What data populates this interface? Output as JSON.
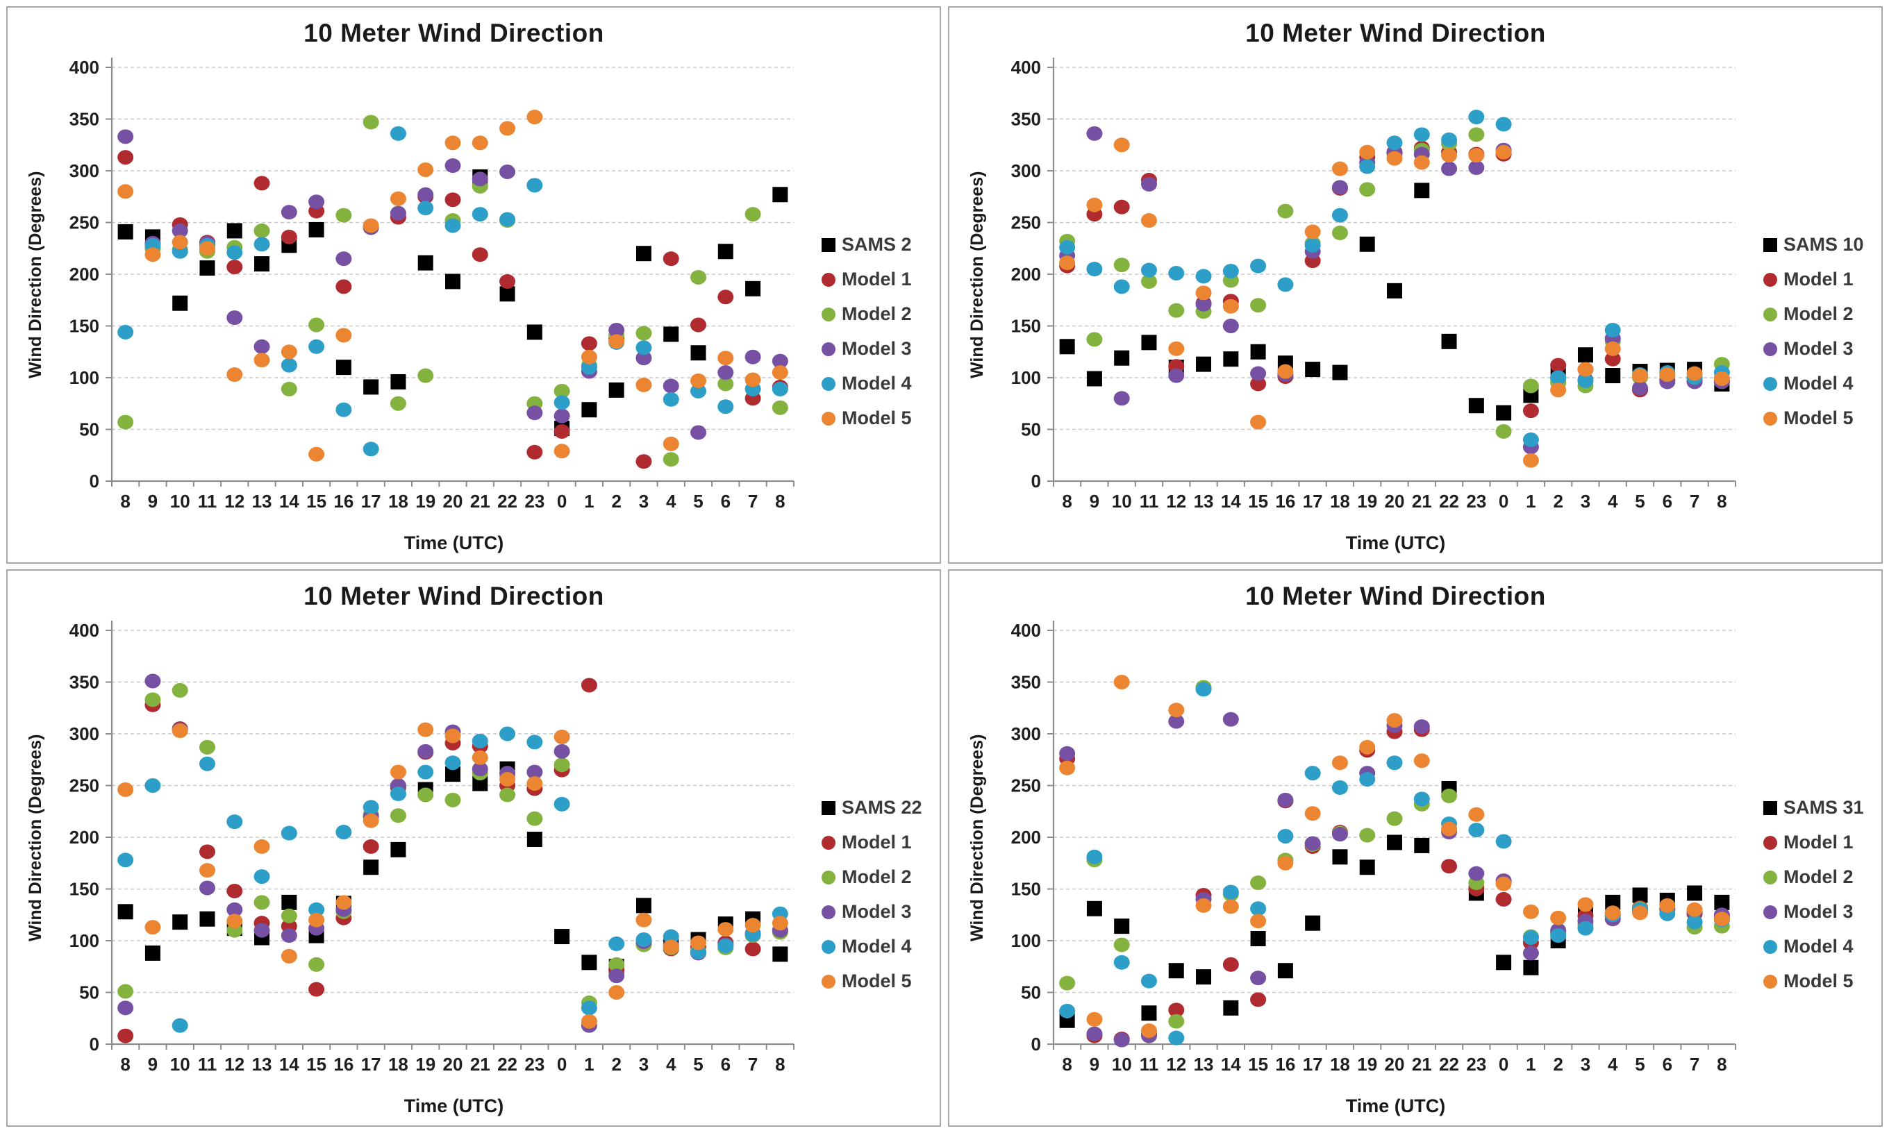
{
  "page": {
    "background": "#ffffff",
    "panel_border": "#a8a8a8"
  },
  "chrome": {
    "grid_color": "#c9c9c9",
    "axis_color": "#8c8c8c",
    "tick_text_color": "#1f1f1f",
    "title_color": "#1a1a1a"
  },
  "chart_data": [
    {
      "type": "scatter",
      "title": "10 Meter Wind Direction",
      "xlabel": "Time (UTC)",
      "ylabel": "Wind Direction (Degrees)",
      "ylim": [
        0,
        400
      ],
      "ystep": 50,
      "grid": true,
      "legend_position": "right",
      "categories": [
        "8",
        "9",
        "10",
        "11",
        "12",
        "13",
        "14",
        "15",
        "16",
        "17",
        "18",
        "19",
        "20",
        "21",
        "22",
        "23",
        "0",
        "1",
        "2",
        "3",
        "4",
        "5",
        "6",
        "7",
        "8"
      ],
      "series": [
        {
          "name": "SAMS 2",
          "marker": "square",
          "color": "#000000",
          "values": [
            241,
            236,
            172,
            206,
            242,
            210,
            228,
            243,
            110,
            91,
            96,
            211,
            193,
            294,
            181,
            144,
            51,
            69,
            88,
            220,
            142,
            124,
            222,
            186,
            277
          ]
        },
        {
          "name": "Model 1",
          "marker": "circle",
          "color": "#b02b30",
          "values": [
            313,
            225,
            248,
            231,
            207,
            288,
            236,
            261,
            188,
            246,
            255,
            275,
            272,
            219,
            193,
            28,
            48,
            133,
            138,
            19,
            215,
            151,
            178,
            80,
            91
          ]
        },
        {
          "name": "Model 2",
          "marker": "circle",
          "color": "#84b23e",
          "values": [
            57,
            225,
            224,
            222,
            226,
            242,
            89,
            151,
            257,
            347,
            75,
            102,
            252,
            285,
            252,
            75,
            87,
            112,
            141,
            143,
            21,
            197,
            94,
            258,
            71
          ]
        },
        {
          "name": "Model 3",
          "marker": "circle",
          "color": "#7650a2",
          "values": [
            333,
            230,
            242,
            230,
            158,
            130,
            260,
            270,
            215,
            245,
            259,
            277,
            305,
            292,
            299,
            66,
            63,
            106,
            146,
            119,
            92,
            47,
            105,
            120,
            116
          ]
        },
        {
          "name": "Model 4",
          "marker": "circle",
          "color": "#2c9ec7",
          "values": [
            144,
            228,
            222,
            228,
            221,
            229,
            112,
            130,
            69,
            31,
            336,
            264,
            247,
            258,
            253,
            286,
            76,
            110,
            134,
            129,
            79,
            87,
            72,
            89,
            89
          ]
        },
        {
          "name": "Model 5",
          "marker": "circle",
          "color": "#eb8532",
          "values": [
            280,
            219,
            231,
            225,
            103,
            117,
            125,
            26,
            141,
            247,
            273,
            301,
            327,
            327,
            341,
            352,
            29,
            120,
            135,
            93,
            36,
            97,
            119,
            98,
            105
          ]
        }
      ]
    },
    {
      "type": "scatter",
      "title": "10 Meter Wind Direction",
      "xlabel": "Time (UTC)",
      "ylabel": "Wind Direction (Degrees)",
      "ylim": [
        0,
        400
      ],
      "ystep": 50,
      "grid": true,
      "legend_position": "right",
      "categories": [
        "8",
        "9",
        "10",
        "11",
        "12",
        "13",
        "14",
        "15",
        "16",
        "17",
        "18",
        "19",
        "20",
        "21",
        "22",
        "23",
        "0",
        "1",
        "2",
        "3",
        "4",
        "5",
        "6",
        "7",
        "8"
      ],
      "series": [
        {
          "name": "SAMS 10",
          "marker": "square",
          "color": "#000000",
          "values": [
            130,
            99,
            119,
            134,
            110,
            113,
            118,
            125,
            114,
            108,
            105,
            229,
            184,
            281,
            135,
            73,
            66,
            83,
            104,
            122,
            102,
            106,
            107,
            108,
            94
          ]
        },
        {
          "name": "Model 1",
          "marker": "circle",
          "color": "#b02b30",
          "values": [
            208,
            258,
            265,
            291,
            111,
            172,
            174,
            94,
            101,
            213,
            283,
            313,
            318,
            322,
            318,
            316,
            316,
            68,
            112,
            108,
            118,
            88,
            98,
            97,
            97
          ]
        },
        {
          "name": "Model 2",
          "marker": "circle",
          "color": "#84b23e",
          "values": [
            232,
            137,
            209,
            193,
            165,
            164,
            194,
            170,
            261,
            230,
            240,
            282,
            316,
            320,
            326,
            335,
            48,
            92,
            95,
            92,
            135,
            100,
            101,
            100,
            113
          ]
        },
        {
          "name": "Model 3",
          "marker": "circle",
          "color": "#7650a2",
          "values": [
            218,
            336,
            80,
            287,
            102,
            171,
            150,
            104,
            103,
            222,
            284,
            308,
            317,
            316,
            302,
            303,
            320,
            33,
            100,
            98,
            138,
            90,
            96,
            96,
            96
          ]
        },
        {
          "name": "Model 4",
          "marker": "circle",
          "color": "#2c9ec7",
          "values": [
            226,
            205,
            188,
            204,
            201,
            198,
            203,
            208,
            190,
            228,
            257,
            304,
            327,
            335,
            330,
            352,
            345,
            40,
            100,
            97,
            146,
            103,
            105,
            100,
            105
          ]
        },
        {
          "name": "Model 5",
          "marker": "circle",
          "color": "#eb8532",
          "values": [
            211,
            267,
            325,
            252,
            128,
            182,
            169,
            57,
            106,
            241,
            302,
            318,
            312,
            308,
            315,
            315,
            318,
            20,
            88,
            108,
            128,
            102,
            103,
            104,
            99
          ]
        }
      ]
    },
    {
      "type": "scatter",
      "title": "10 Meter Wind Direction",
      "xlabel": "Time (UTC)",
      "ylabel": "Wind Direction (Degrees)",
      "ylim": [
        0,
        400
      ],
      "ystep": 50,
      "grid": true,
      "legend_position": "right",
      "categories": [
        "8",
        "9",
        "10",
        "11",
        "12",
        "13",
        "14",
        "15",
        "16",
        "17",
        "18",
        "19",
        "20",
        "21",
        "22",
        "23",
        "0",
        "1",
        "2",
        "3",
        "4",
        "5",
        "6",
        "7",
        "8"
      ],
      "series": [
        {
          "name": "SAMS 22",
          "marker": "square",
          "color": "#000000",
          "values": [
            128,
            88,
            118,
            121,
            112,
            103,
            137,
            105,
            136,
            171,
            188,
            246,
            261,
            252,
            266,
            198,
            104,
            79,
            75,
            134,
            97,
            101,
            116,
            121,
            87
          ]
        },
        {
          "name": "Model 1",
          "marker": "circle",
          "color": "#b02b30",
          "values": [
            8,
            328,
            305,
            186,
            148,
            117,
            114,
            53,
            122,
            191,
            248,
            282,
            291,
            288,
            250,
            247,
            265,
            347,
            72,
            97,
            92,
            94,
            98,
            92,
            110
          ]
        },
        {
          "name": "Model 2",
          "marker": "circle",
          "color": "#84b23e",
          "values": [
            51,
            333,
            342,
            287,
            110,
            137,
            124,
            77,
            128,
            222,
            221,
            241,
            236,
            262,
            241,
            218,
            270,
            40,
            77,
            96,
            93,
            90,
            93,
            105,
            108
          ]
        },
        {
          "name": "Model 3",
          "marker": "circle",
          "color": "#7650a2",
          "values": [
            35,
            351,
            304,
            151,
            130,
            110,
            105,
            112,
            130,
            220,
            250,
            283,
            302,
            266,
            262,
            263,
            283,
            18,
            66,
            99,
            95,
            88,
            96,
            107,
            110
          ]
        },
        {
          "name": "Model 4",
          "marker": "circle",
          "color": "#2c9ec7",
          "values": [
            178,
            250,
            18,
            271,
            215,
            162,
            204,
            130,
            205,
            229,
            242,
            263,
            272,
            293,
            300,
            292,
            232,
            35,
            97,
            101,
            104,
            89,
            95,
            106,
            126
          ]
        },
        {
          "name": "Model 5",
          "marker": "circle",
          "color": "#eb8532",
          "values": [
            246,
            113,
            303,
            168,
            119,
            191,
            85,
            120,
            137,
            216,
            263,
            304,
            298,
            277,
            256,
            252,
            297,
            22,
            50,
            120,
            94,
            98,
            111,
            115,
            117
          ]
        }
      ]
    },
    {
      "type": "scatter",
      "title": "10 Meter Wind Direction",
      "xlabel": "Time (UTC)",
      "ylabel": "Wind Direction (Degrees)",
      "ylim": [
        0,
        400
      ],
      "ystep": 50,
      "grid": true,
      "legend_position": "right",
      "categories": [
        "8",
        "9",
        "10",
        "11",
        "12",
        "13",
        "14",
        "15",
        "16",
        "17",
        "18",
        "19",
        "20",
        "21",
        "22",
        "23",
        "0",
        "1",
        "2",
        "3",
        "4",
        "5",
        "6",
        "7",
        "8"
      ],
      "series": [
        {
          "name": "SAMS 31",
          "marker": "square",
          "color": "#000000",
          "values": [
            23,
            131,
            114,
            30,
            71,
            65,
            35,
            102,
            71,
            117,
            181,
            171,
            195,
            192,
            247,
            146,
            79,
            74,
            100,
            130,
            137,
            144,
            139,
            146,
            137
          ]
        },
        {
          "name": "Model 1",
          "marker": "circle",
          "color": "#b02b30",
          "values": [
            276,
            8,
            5,
            10,
            33,
            144,
            77,
            43,
            235,
            191,
            205,
            284,
            302,
            304,
            172,
            150,
            140,
            98,
            108,
            124,
            124,
            132,
            131,
            126,
            123
          ]
        },
        {
          "name": "Model 2",
          "marker": "circle",
          "color": "#84b23e",
          "values": [
            59,
            178,
            96,
            12,
            22,
            345,
            145,
            156,
            178,
            193,
            204,
            202,
            218,
            232,
            240,
            156,
            156,
            104,
            107,
            115,
            123,
            131,
            129,
            113,
            114
          ]
        },
        {
          "name": "Model 3",
          "marker": "circle",
          "color": "#7650a2",
          "values": [
            281,
            10,
            4,
            8,
            312,
            140,
            314,
            64,
            236,
            194,
            203,
            262,
            308,
            307,
            205,
            165,
            158,
            88,
            110,
            119,
            121,
            129,
            131,
            128,
            125
          ]
        },
        {
          "name": "Model 4",
          "marker": "circle",
          "color": "#2c9ec7",
          "values": [
            32,
            181,
            79,
            61,
            6,
            343,
            147,
            131,
            201,
            262,
            248,
            256,
            272,
            237,
            213,
            207,
            196,
            103,
            105,
            112,
            125,
            130,
            126,
            118,
            120
          ]
        },
        {
          "name": "Model 5",
          "marker": "circle",
          "color": "#eb8532",
          "values": [
            267,
            24,
            350,
            13,
            323,
            134,
            133,
            119,
            175,
            223,
            272,
            287,
            313,
            274,
            208,
            222,
            155,
            128,
            122,
            135,
            127,
            127,
            134,
            130,
            121
          ]
        }
      ]
    }
  ]
}
